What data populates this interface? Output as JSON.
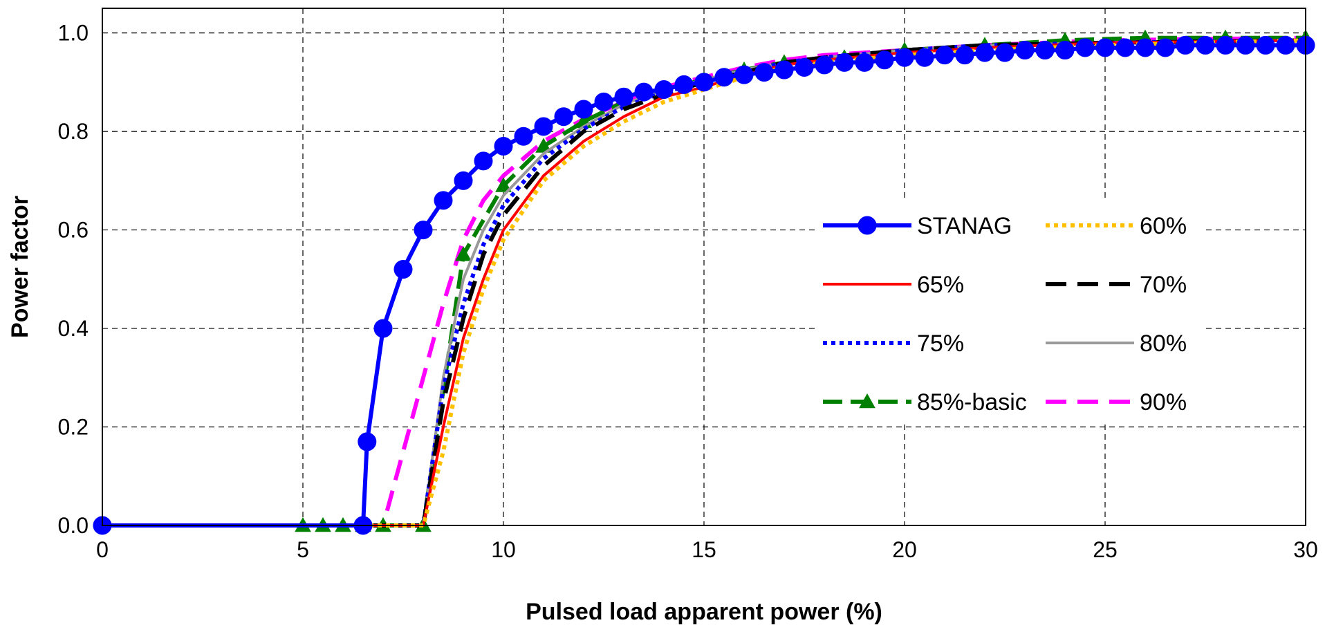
{
  "chart_data": {
    "type": "line",
    "title": "",
    "xlabel": "Pulsed load apparent power (%)",
    "ylabel": "Power factor",
    "xlim": [
      0,
      30
    ],
    "ylim": [
      0,
      1.05
    ],
    "x_ticks": [
      0,
      5,
      10,
      15,
      20,
      25,
      30
    ],
    "y_ticks": [
      0.0,
      0.2,
      0.4,
      0.6,
      0.8,
      1.0
    ],
    "x_tick_labels": [
      "0",
      "5",
      "10",
      "15",
      "20",
      "25",
      "30"
    ],
    "y_tick_labels": [
      "0.0",
      "0.2",
      "0.4",
      "0.6",
      "0.8",
      "1.0"
    ],
    "grid": true,
    "legend_position": "inside-right",
    "series": [
      {
        "name": "STANAG",
        "color": "#0000ff",
        "style": "solid-circle-markers",
        "points": [
          [
            0,
            0
          ],
          [
            6.5,
            0
          ],
          [
            6.6,
            0.17
          ],
          [
            7,
            0.4
          ],
          [
            7.5,
            0.52
          ],
          [
            8,
            0.6
          ],
          [
            8.5,
            0.66
          ],
          [
            9,
            0.7
          ],
          [
            9.5,
            0.74
          ],
          [
            10,
            0.77
          ],
          [
            10.5,
            0.79
          ],
          [
            11,
            0.81
          ],
          [
            11.5,
            0.83
          ],
          [
            12,
            0.845
          ],
          [
            12.5,
            0.86
          ],
          [
            13,
            0.87
          ],
          [
            13.5,
            0.88
          ],
          [
            14,
            0.885
          ],
          [
            14.5,
            0.895
          ],
          [
            15,
            0.9
          ],
          [
            15.5,
            0.91
          ],
          [
            16,
            0.915
          ],
          [
            16.5,
            0.92
          ],
          [
            17,
            0.925
          ],
          [
            17.5,
            0.93
          ],
          [
            18,
            0.935
          ],
          [
            18.5,
            0.94
          ],
          [
            19,
            0.94
          ],
          [
            19.5,
            0.945
          ],
          [
            20,
            0.95
          ],
          [
            20.5,
            0.95
          ],
          [
            21,
            0.955
          ],
          [
            21.5,
            0.955
          ],
          [
            22,
            0.96
          ],
          [
            22.5,
            0.96
          ],
          [
            23,
            0.965
          ],
          [
            23.5,
            0.965
          ],
          [
            24,
            0.965
          ],
          [
            24.5,
            0.97
          ],
          [
            25,
            0.97
          ],
          [
            25.5,
            0.97
          ],
          [
            26,
            0.97
          ],
          [
            26.5,
            0.97
          ],
          [
            27,
            0.975
          ],
          [
            27.5,
            0.975
          ],
          [
            28,
            0.975
          ],
          [
            28.5,
            0.975
          ],
          [
            29,
            0.975
          ],
          [
            29.5,
            0.975
          ],
          [
            30,
            0.975
          ]
        ]
      },
      {
        "name": "60%",
        "color": "#ffc000",
        "style": "dotted",
        "points": [
          [
            5,
            0
          ],
          [
            8,
            0
          ],
          [
            8.5,
            0.15
          ],
          [
            9,
            0.35
          ],
          [
            9.5,
            0.48
          ],
          [
            10,
            0.58
          ],
          [
            11,
            0.7
          ],
          [
            12,
            0.77
          ],
          [
            13,
            0.82
          ],
          [
            14,
            0.86
          ],
          [
            15,
            0.885
          ],
          [
            16,
            0.91
          ],
          [
            17,
            0.93
          ],
          [
            18,
            0.94
          ],
          [
            20,
            0.955
          ],
          [
            22,
            0.965
          ],
          [
            25,
            0.975
          ],
          [
            30,
            0.985
          ]
        ]
      },
      {
        "name": "65%",
        "color": "#ff0000",
        "style": "solid",
        "points": [
          [
            5,
            0
          ],
          [
            8,
            0
          ],
          [
            8.5,
            0.2
          ],
          [
            9,
            0.38
          ],
          [
            9.5,
            0.5
          ],
          [
            10,
            0.6
          ],
          [
            11,
            0.71
          ],
          [
            12,
            0.78
          ],
          [
            13,
            0.83
          ],
          [
            14,
            0.87
          ],
          [
            15,
            0.89
          ],
          [
            16,
            0.915
          ],
          [
            17,
            0.935
          ],
          [
            18,
            0.945
          ],
          [
            20,
            0.96
          ],
          [
            22,
            0.97
          ],
          [
            25,
            0.98
          ],
          [
            30,
            0.985
          ]
        ]
      },
      {
        "name": "70%",
        "color": "#000000",
        "style": "long-dash",
        "points": [
          [
            5,
            0
          ],
          [
            8,
            0
          ],
          [
            8.5,
            0.25
          ],
          [
            9,
            0.42
          ],
          [
            9.5,
            0.55
          ],
          [
            10,
            0.63
          ],
          [
            11,
            0.73
          ],
          [
            12,
            0.8
          ],
          [
            13,
            0.845
          ],
          [
            14,
            0.875
          ],
          [
            15,
            0.9
          ],
          [
            16,
            0.92
          ],
          [
            17,
            0.94
          ],
          [
            18,
            0.95
          ],
          [
            20,
            0.965
          ],
          [
            22,
            0.975
          ],
          [
            25,
            0.98
          ],
          [
            30,
            0.985
          ]
        ]
      },
      {
        "name": "75%",
        "color": "#0000ff",
        "style": "dotted",
        "points": [
          [
            5,
            0
          ],
          [
            8,
            0
          ],
          [
            8.5,
            0.28
          ],
          [
            9,
            0.45
          ],
          [
            9.5,
            0.57
          ],
          [
            10,
            0.65
          ],
          [
            11,
            0.745
          ],
          [
            12,
            0.805
          ],
          [
            13,
            0.85
          ],
          [
            14,
            0.88
          ],
          [
            15,
            0.9
          ],
          [
            16,
            0.92
          ],
          [
            17,
            0.94
          ],
          [
            18,
            0.95
          ],
          [
            20,
            0.965
          ],
          [
            22,
            0.975
          ],
          [
            25,
            0.98
          ],
          [
            30,
            0.985
          ]
        ]
      },
      {
        "name": "80%",
        "color": "#999999",
        "style": "solid",
        "points": [
          [
            5,
            0
          ],
          [
            8,
            0
          ],
          [
            8.5,
            0.3
          ],
          [
            9,
            0.5
          ],
          [
            9.5,
            0.6
          ],
          [
            10,
            0.67
          ],
          [
            11,
            0.755
          ],
          [
            12,
            0.81
          ],
          [
            13,
            0.855
          ],
          [
            14,
            0.885
          ],
          [
            15,
            0.905
          ],
          [
            16,
            0.925
          ],
          [
            17,
            0.94
          ],
          [
            18,
            0.95
          ],
          [
            20,
            0.965
          ],
          [
            22,
            0.975
          ],
          [
            25,
            0.98
          ],
          [
            30,
            0.985
          ]
        ]
      },
      {
        "name": "85%-basic",
        "color": "#008000",
        "style": "dash-triangle-markers",
        "points": [
          [
            5,
            0
          ],
          [
            5.5,
            0
          ],
          [
            6,
            0
          ],
          [
            6.5,
            0
          ],
          [
            7,
            0
          ],
          [
            8,
            0
          ],
          [
            9,
            0.55
          ],
          [
            10,
            0.69
          ],
          [
            11,
            0.77
          ],
          [
            12,
            0.82
          ],
          [
            13,
            0.86
          ],
          [
            14,
            0.885
          ],
          [
            15,
            0.905
          ],
          [
            16,
            0.925
          ],
          [
            17,
            0.94
          ],
          [
            18.5,
            0.95
          ],
          [
            20,
            0.965
          ],
          [
            22,
            0.975
          ],
          [
            24,
            0.985
          ],
          [
            26,
            0.99
          ],
          [
            28,
            0.99
          ],
          [
            30,
            0.99
          ]
        ]
      },
      {
        "name": "90%",
        "color": "#ff00ff",
        "style": "long-dash",
        "points": [
          [
            5,
            0
          ],
          [
            7,
            0
          ],
          [
            7.5,
            0.15
          ],
          [
            8,
            0.3
          ],
          [
            8.5,
            0.45
          ],
          [
            9,
            0.58
          ],
          [
            9.5,
            0.66
          ],
          [
            10,
            0.71
          ],
          [
            11,
            0.78
          ],
          [
            12,
            0.825
          ],
          [
            13,
            0.86
          ],
          [
            14,
            0.89
          ],
          [
            15,
            0.91
          ],
          [
            16,
            0.93
          ],
          [
            17,
            0.945
          ],
          [
            18,
            0.955
          ],
          [
            20,
            0.965
          ],
          [
            22,
            0.975
          ],
          [
            25,
            0.985
          ],
          [
            30,
            0.99
          ]
        ]
      }
    ]
  }
}
